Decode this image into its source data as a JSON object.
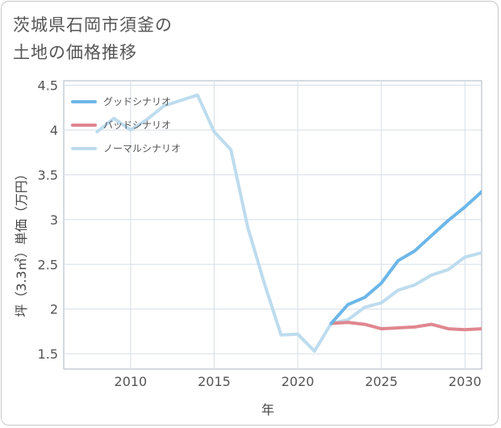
{
  "title_lines": [
    "茨城県石岡市須釜の",
    "土地の価格推移"
  ],
  "chart_data": {
    "type": "line",
    "xlabel": "年",
    "ylabel": "坪（3.3㎡）単価（万円）",
    "xlim": [
      2006,
      2031
    ],
    "ylim": [
      1.33,
      4.55
    ],
    "xticks": [
      2010,
      2015,
      2020,
      2025,
      2030
    ],
    "yticks": [
      1.5,
      2,
      2.5,
      3,
      3.5,
      4,
      4.5
    ],
    "ytick_labels": [
      "1.5",
      "2",
      "2.5",
      "3",
      "3.5",
      "4",
      "4.5"
    ],
    "xtick_labels": [
      "2010",
      "2015",
      "2020",
      "2025",
      "2030"
    ],
    "legend_position": "top-left",
    "series": [
      {
        "name": "グッドシナリオ",
        "color": "#6cb6e8",
        "x": [
          2022,
          2023,
          2024,
          2025,
          2026,
          2027,
          2028,
          2029,
          2030,
          2031
        ],
        "values": [
          1.84,
          2.05,
          2.13,
          2.29,
          2.54,
          2.65,
          2.82,
          2.99,
          3.14,
          3.31
        ]
      },
      {
        "name": "バッドシナリオ",
        "color": "#e0878f",
        "x": [
          2022,
          2023,
          2024,
          2025,
          2026,
          2027,
          2028,
          2029,
          2030,
          2031
        ],
        "values": [
          1.84,
          1.85,
          1.83,
          1.78,
          1.79,
          1.8,
          1.83,
          1.78,
          1.77,
          1.78
        ]
      },
      {
        "name": "ノーマルシナリオ",
        "color": "#bddcee",
        "x": [
          2008,
          2009,
          2010,
          2011,
          2012,
          2013,
          2014,
          2015,
          2016,
          2017,
          2018,
          2019,
          2020,
          2021,
          2022,
          2023,
          2024,
          2025,
          2026,
          2027,
          2028,
          2029,
          2030,
          2031
        ],
        "values": [
          3.98,
          4.13,
          4.0,
          4.12,
          4.27,
          4.33,
          4.39,
          3.98,
          3.78,
          2.92,
          2.29,
          1.71,
          1.72,
          1.53,
          1.84,
          1.88,
          2.02,
          2.07,
          2.21,
          2.27,
          2.38,
          2.44,
          2.58,
          2.63
        ]
      }
    ]
  }
}
